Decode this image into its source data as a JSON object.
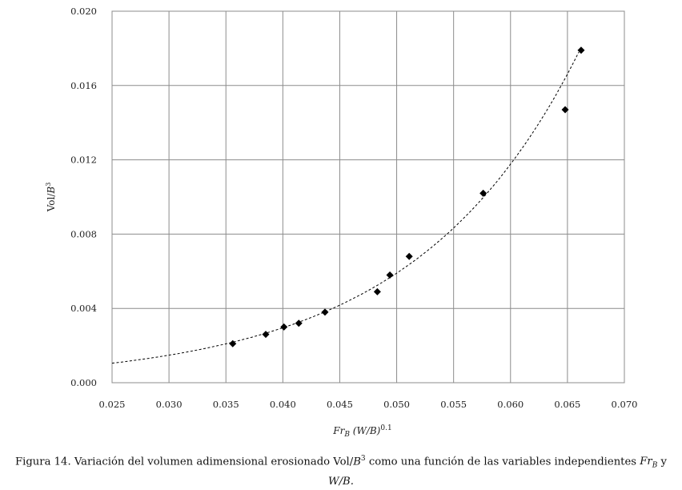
{
  "chart_data": {
    "type": "scatter",
    "xlabel_main": "Fr",
    "xlabel_sub": "B",
    "xlabel_rest": " (W/B)",
    "xlabel_exp": "0.1",
    "ylabel_main": "Vol/",
    "ylabel_var": "B",
    "ylabel_exp": "3",
    "xlim": [
      0.025,
      0.07
    ],
    "ylim": [
      0.0,
      0.02
    ],
    "xticks": [
      "0.025",
      "0.030",
      "0.035",
      "0.040",
      "0.045",
      "0.050",
      "0.055",
      "0.060",
      "0.065",
      "0.070"
    ],
    "yticks": [
      "0.000",
      "0.004",
      "0.008",
      "0.012",
      "0.016",
      "0.020"
    ],
    "grid": true,
    "series": [
      {
        "marker": "diamond",
        "color": "#000000",
        "points": [
          [
            0.0356,
            0.0021
          ],
          [
            0.0385,
            0.0026
          ],
          [
            0.0401,
            0.003
          ],
          [
            0.0414,
            0.0032
          ],
          [
            0.0437,
            0.0038
          ],
          [
            0.0483,
            0.0049
          ],
          [
            0.0494,
            0.0058
          ],
          [
            0.0511,
            0.0068
          ],
          [
            0.0576,
            0.0102
          ],
          [
            0.0648,
            0.0147
          ],
          [
            0.0662,
            0.0179
          ]
        ]
      }
    ],
    "trendline": {
      "style": "dashed",
      "model": "exponential",
      "x_range": [
        0.025,
        0.066
      ],
      "endpoints": [
        [
          0.025,
          0.00105
        ],
        [
          0.066,
          0.0178
        ]
      ]
    }
  },
  "caption": {
    "prefix": "Figura 14. Variación del volumen adimensional erosionado Vol/",
    "var1": "B",
    "exp1": "3",
    "middle": " como una función de las variables independientes ",
    "var2": "Fr",
    "sub2": "B",
    "suffix": " y",
    "line2": "W/B."
  },
  "colors": {
    "grid": "#8c8c8c",
    "frame": "#7f7f7f",
    "marker": "#000000"
  }
}
